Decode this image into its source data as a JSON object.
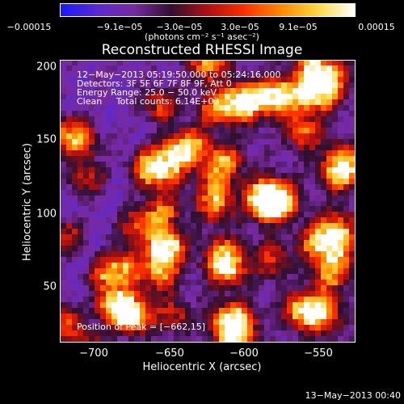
{
  "colorbar": {
    "tick_labels": [
      "−0.00015",
      "−9.1e−05",
      "−3.0e−05",
      "3.0e−05",
      "9.1e−05",
      "0.00015"
    ],
    "units": "(photons cm⁻² s⁻¹ asec⁻²)",
    "colors": [
      "#1a1aff",
      "#5a2ad0",
      "#7a2aa0",
      "#301030",
      "#b01010",
      "#ff3000",
      "#ff8a00",
      "#ffd840",
      "#ffffff"
    ]
  },
  "plot": {
    "title": "Reconstructed RHESSI Image",
    "annotation_lines": [
      "12−May−2013 05:19:50.000 to 05:24:16.000",
      "Detectors: 3F 5F 6F 7F 8F 9F, Att 0",
      "Energy Range: 25.0 − 50.0 keV",
      "Clean     Total counts: 6.14E+03"
    ],
    "peak_text": "Position of Peak = [−662,15]",
    "xlabel": "Heliocentric X (arcsec)",
    "ylabel": "Heliocentric Y (arcsec)",
    "x_ticks": [
      "−700",
      "−650",
      "−600",
      "−550"
    ],
    "y_ticks": [
      "200",
      "150",
      "100",
      "50"
    ]
  },
  "chart_data": {
    "type": "heatmap",
    "title": "Reconstructed RHESSI Image",
    "xlabel": "Heliocentric X (arcsec)",
    "ylabel": "Heliocentric Y (arcsec)",
    "xlim": [
      -722,
      -530
    ],
    "ylim": [
      10,
      205
    ],
    "clim": [
      -0.00015,
      0.00015
    ],
    "peak": [
      -662,
      15
    ]
  },
  "footer": {
    "timestamp": "13−May−2013 00:40"
  }
}
